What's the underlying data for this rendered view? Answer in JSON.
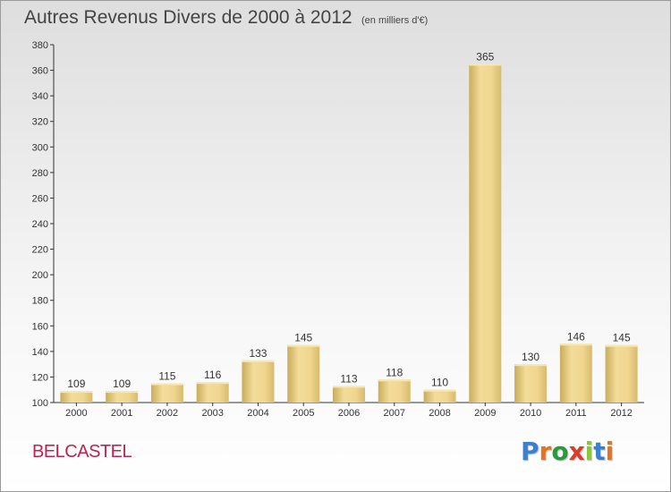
{
  "chart_data": {
    "type": "bar",
    "title": "Autres Revenus Divers de 2000 à 2012",
    "subtitle": "(en milliers d'€)",
    "categories": [
      "2000",
      "2001",
      "2002",
      "2003",
      "2004",
      "2005",
      "2006",
      "2007",
      "2008",
      "2009",
      "2010",
      "2011",
      "2012"
    ],
    "values": [
      109,
      109,
      115,
      116,
      133,
      145,
      113,
      118,
      110,
      365,
      130,
      146,
      145
    ],
    "ylim": [
      100,
      380
    ],
    "yticks": [
      100,
      120,
      140,
      160,
      180,
      200,
      220,
      240,
      260,
      280,
      300,
      320,
      340,
      360,
      380
    ],
    "grid": false,
    "bar_color": "#e8cf85",
    "xlabel": "",
    "ylabel": ""
  },
  "footer": {
    "commune": "BELCASTEL",
    "brand": "Proxiti",
    "brand_colors": [
      "#3b7fd0",
      "#e8731f",
      "#2a9a3c",
      "#e23a2a",
      "#8cc63f",
      "#3b7fd0",
      "#e8731f"
    ]
  }
}
